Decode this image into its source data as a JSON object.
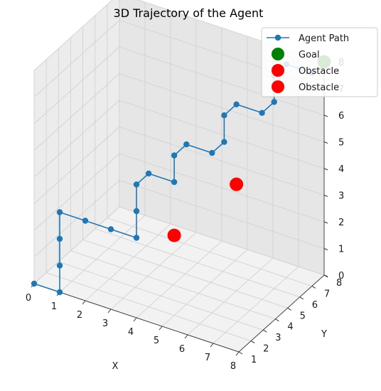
{
  "chart_data": {
    "type": "scatter",
    "title": "3D Trajectory of the Agent",
    "xlabel": "X",
    "ylabel": "Y",
    "zlabel": "",
    "xlim": [
      0,
      8
    ],
    "ylim": [
      1,
      8
    ],
    "zlim": [
      0,
      8
    ],
    "x_ticks": [
      "0",
      "1",
      "2",
      "3",
      "4",
      "5",
      "6",
      "7",
      "8"
    ],
    "y_ticks": [
      "1",
      "2",
      "3",
      "4",
      "5",
      "6",
      "7",
      "8"
    ],
    "z_ticks": [
      "0",
      "1",
      "2",
      "3",
      "4",
      "5",
      "6",
      "7",
      "8"
    ],
    "grid": true,
    "legend_position": "top-right",
    "series": [
      {
        "name": "Agent Path",
        "kind": "line-markers",
        "color": "#1f77b4",
        "points": [
          [
            0,
            1,
            0
          ],
          [
            1,
            1,
            0
          ],
          [
            1,
            1,
            1
          ],
          [
            1,
            1,
            2
          ],
          [
            1,
            1,
            3
          ],
          [
            2,
            1,
            3
          ],
          [
            3,
            1,
            3
          ],
          [
            4,
            1,
            3
          ],
          [
            4,
            1,
            4
          ],
          [
            4,
            1,
            5
          ],
          [
            4,
            2,
            5
          ],
          [
            5,
            2,
            5
          ],
          [
            5,
            2,
            6
          ],
          [
            5,
            3,
            6
          ],
          [
            6,
            3,
            6
          ],
          [
            6,
            4,
            6
          ],
          [
            6,
            4,
            7
          ],
          [
            6,
            5,
            7
          ],
          [
            7,
            5,
            7
          ],
          [
            7,
            6,
            7
          ],
          [
            7,
            6,
            8
          ],
          [
            7,
            7,
            8
          ],
          [
            8,
            7,
            8
          ]
        ]
      },
      {
        "name": "Goal",
        "kind": "marker",
        "color": "#008000",
        "points": [
          [
            8,
            8,
            8
          ]
        ]
      },
      {
        "name": "Obstacle",
        "kind": "marker",
        "color": "#ff0000",
        "points": [
          [
            5,
            2,
            3
          ]
        ]
      },
      {
        "name": "Obstacle",
        "kind": "marker",
        "color": "#ff0000",
        "points": [
          [
            6,
            5,
            4
          ]
        ]
      }
    ]
  }
}
